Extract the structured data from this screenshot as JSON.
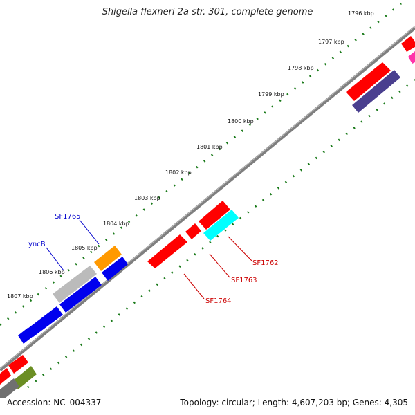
{
  "title": "Shigella flexneri 2a str. 301, complete genome",
  "accession": "Accession: NC_004337",
  "summary": "Topology: circular; Length: 4,607,203 bp; Genes: 4,305",
  "kbp_ticks": [
    "1796 kbp",
    "1797 kbp",
    "1798 kbp",
    "1799 kbp",
    "1800 kbp",
    "1801 kbp",
    "1802 kbp",
    "1803 kbp",
    "1804 kbp",
    "1805 kbp",
    "1806 kbp",
    "1807 kbp"
  ],
  "gene_labels": {
    "sf1765": "SF1765",
    "yncb": "yncB",
    "sf1762": "SF1762",
    "sf1763": "SF1763",
    "sf1764": "SF1764"
  },
  "colors": {
    "backbone": "#7f7f7f",
    "ticks": "#1a7a1a",
    "red": "#ff0000",
    "blue": "#0000ee",
    "orange": "#ff9900",
    "cyan": "#00ffff",
    "gray": "#bbbbbb",
    "navy": "#4a3f8f",
    "olive": "#6b8e23",
    "dark_gray": "#707070",
    "magenta": "#ff33aa",
    "label_blue": "#0000cc",
    "label_red": "#cc0000"
  }
}
